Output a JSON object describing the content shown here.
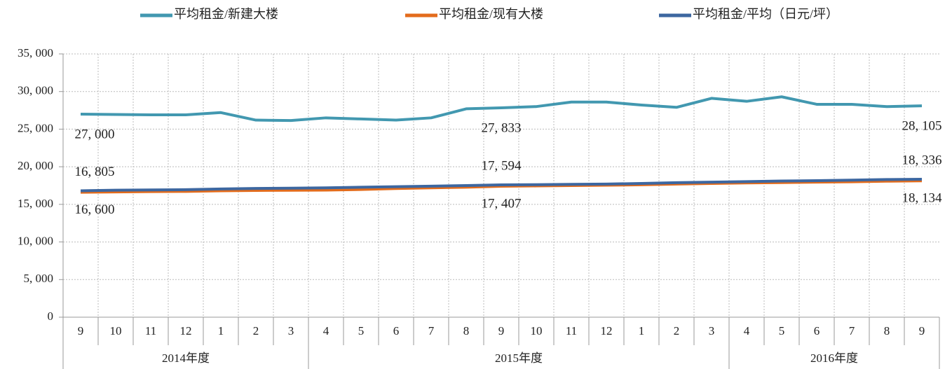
{
  "chart_data": {
    "type": "line",
    "categories": [
      "9",
      "10",
      "11",
      "12",
      "1",
      "2",
      "3",
      "4",
      "5",
      "6",
      "7",
      "8",
      "9",
      "10",
      "11",
      "12",
      "1",
      "2",
      "3",
      "4",
      "5",
      "6",
      "7",
      "8",
      "9"
    ],
    "groups": [
      {
        "label": "2014年度",
        "count": 7
      },
      {
        "label": "2015年度",
        "count": 12
      },
      {
        "label": "2016年度",
        "count": 6
      }
    ],
    "series": [
      {
        "name": "平均租金/新建大楼",
        "color": "#4298b0",
        "values": [
          27000,
          26950,
          26900,
          26900,
          27200,
          26200,
          26150,
          26500,
          26350,
          26200,
          26500,
          27700,
          27833,
          28000,
          28600,
          28600,
          28200,
          27900,
          29100,
          28700,
          29300,
          28300,
          28300,
          28000,
          28105
        ],
        "value_labels": [
          "27, 000",
          null,
          null,
          null,
          null,
          null,
          null,
          null,
          null,
          null,
          null,
          null,
          "27, 833",
          null,
          null,
          null,
          null,
          null,
          null,
          null,
          null,
          null,
          null,
          null,
          "28, 105"
        ]
      },
      {
        "name": "平均租金/现有大楼",
        "color": "#e36c1c",
        "values": [
          16600,
          16650,
          16700,
          16720,
          16800,
          16850,
          16870,
          16900,
          16980,
          17100,
          17200,
          17280,
          17407,
          17450,
          17500,
          17550,
          17600,
          17700,
          17780,
          17850,
          17900,
          17950,
          18000,
          18080,
          18134
        ],
        "value_labels": [
          "16, 600",
          null,
          null,
          null,
          null,
          null,
          null,
          null,
          null,
          null,
          null,
          null,
          "17, 407",
          null,
          null,
          null,
          null,
          null,
          null,
          null,
          null,
          null,
          null,
          null,
          "18, 134"
        ]
      },
      {
        "name": "平均租金/平均（日元/坪）",
        "color": "#3d67a0",
        "values": [
          16805,
          16880,
          16920,
          16950,
          17050,
          17120,
          17150,
          17200,
          17280,
          17350,
          17420,
          17500,
          17594,
          17620,
          17660,
          17700,
          17780,
          17880,
          17950,
          18020,
          18100,
          18150,
          18220,
          18300,
          18336
        ],
        "value_labels": [
          "16, 805",
          null,
          null,
          null,
          null,
          null,
          null,
          null,
          null,
          null,
          null,
          null,
          "17, 594",
          null,
          null,
          null,
          null,
          null,
          null,
          null,
          null,
          null,
          null,
          null,
          "18, 336"
        ]
      }
    ],
    "ylim": [
      0,
      35000
    ],
    "yticks": [
      0,
      {
        "value": 5000,
        "label": "5, 000"
      },
      {
        "value": 10000,
        "label": "10, 000"
      },
      {
        "value": 15000,
        "label": "15, 000"
      },
      {
        "value": 20000,
        "label": "20, 000"
      },
      {
        "value": 25000,
        "label": "25, 000"
      },
      {
        "value": 30000,
        "label": "30, 000"
      },
      {
        "value": 35000,
        "label": "35, 000"
      }
    ],
    "grid": true,
    "legend": "top"
  }
}
